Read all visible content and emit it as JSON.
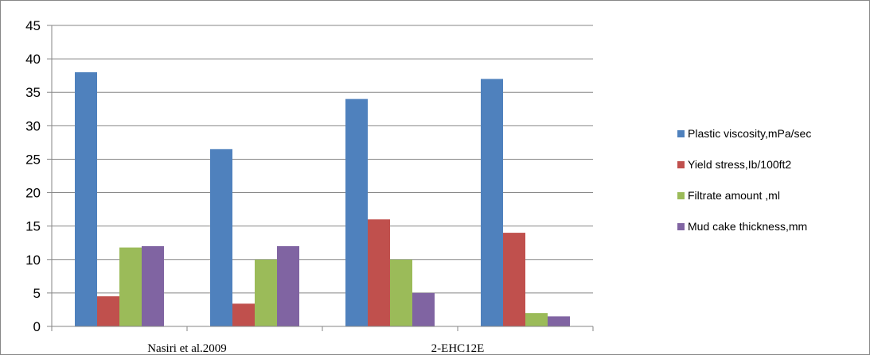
{
  "chart_data": {
    "type": "bar",
    "categories": [
      "Nasiri et al.2009",
      "",
      "2-EHC12E",
      ""
    ],
    "ylim": [
      0,
      45
    ],
    "yticks": [
      0,
      5,
      10,
      15,
      20,
      25,
      30,
      35,
      40,
      45
    ],
    "grid": true,
    "legend_position": "right",
    "series": [
      {
        "name": "Plastic viscosity,mPa/sec",
        "color": "#4F81BD",
        "values": [
          38,
          26.5,
          34,
          37
        ]
      },
      {
        "name": "Yield stress,Ib/100ft2",
        "color": "#C0504D",
        "values": [
          4.5,
          3.4,
          16,
          14
        ]
      },
      {
        "name": "Filtrate amount ,ml",
        "color": "#9BBB59",
        "values": [
          11.8,
          10,
          10,
          2
        ]
      },
      {
        "name": "Mud cake thickness,mm",
        "color": "#8064A2",
        "values": [
          12,
          12,
          5,
          1.5
        ]
      }
    ]
  }
}
